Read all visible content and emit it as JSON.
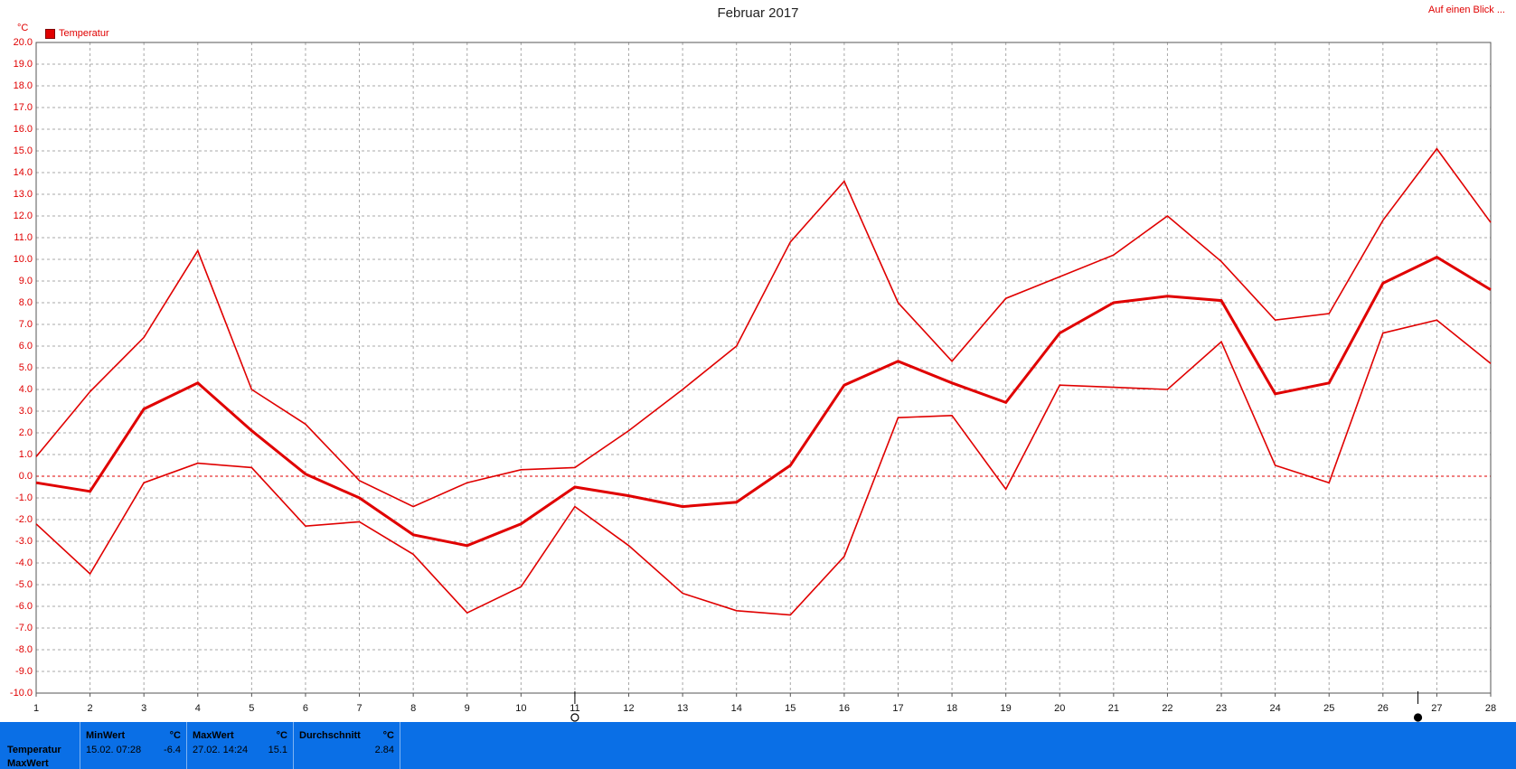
{
  "title": "Februar 2017",
  "link_label": "Auf einen Blick ...",
  "y_unit": "°C",
  "legend": {
    "label": "Temperatur",
    "color": "#e00000"
  },
  "chart_data": {
    "type": "line",
    "title": "Februar 2017",
    "xlabel": "",
    "ylabel": "°C",
    "x": [
      1,
      2,
      3,
      4,
      5,
      6,
      7,
      8,
      9,
      10,
      11,
      12,
      13,
      14,
      15,
      16,
      17,
      18,
      19,
      20,
      21,
      22,
      23,
      24,
      25,
      26,
      27,
      28
    ],
    "xlim": [
      1,
      28
    ],
    "ylim": [
      -10,
      20
    ],
    "y_ticks": [
      "20.0",
      "19.0",
      "18.0",
      "17.0",
      "16.0",
      "15.0",
      "14.0",
      "13.0",
      "12.0",
      "11.0",
      "10.0",
      "9.0",
      "8.0",
      "7.0",
      "6.0",
      "5.0",
      "4.0",
      "3.0",
      "2.0",
      "1.0",
      "0.0",
      "-1.0",
      "-2.0",
      "-3.0",
      "-4.0",
      "-5.0",
      "-6.0",
      "-7.0",
      "-8.0",
      "-9.0",
      "-10.0"
    ],
    "x_ticks": [
      "1",
      "2",
      "3",
      "4",
      "5",
      "6",
      "7",
      "8",
      "9",
      "10",
      "11",
      "12",
      "13",
      "14",
      "15",
      "16",
      "17",
      "18",
      "19",
      "20",
      "21",
      "22",
      "23",
      "24",
      "25",
      "26",
      "27",
      "28"
    ],
    "grid": true,
    "zero_line": true,
    "legend_position": "top-left",
    "series": [
      {
        "name": "Temperatur",
        "role": "max",
        "color": "#e00000",
        "values": [
          0.9,
          3.9,
          6.4,
          10.4,
          4.0,
          2.4,
          -0.2,
          -1.4,
          -0.3,
          0.3,
          0.4,
          2.1,
          4.0,
          6.0,
          10.8,
          13.6,
          8.0,
          5.3,
          8.2,
          9.2,
          10.2,
          12.0,
          9.9,
          7.2,
          7.5,
          11.8,
          15.1,
          11.7
        ]
      },
      {
        "name": "Temperatur",
        "role": "avg",
        "color": "#e00000",
        "values": [
          -0.3,
          -0.7,
          3.1,
          4.3,
          2.1,
          0.1,
          -1.0,
          -2.7,
          -3.2,
          -2.2,
          -0.5,
          -0.9,
          -1.4,
          -1.2,
          0.5,
          4.2,
          5.3,
          4.3,
          3.4,
          6.6,
          8.0,
          8.3,
          8.1,
          3.8,
          4.3,
          8.9,
          10.1,
          8.6
        ]
      },
      {
        "name": "Temperatur",
        "role": "min",
        "color": "#e00000",
        "values": [
          -2.2,
          -4.5,
          -0.3,
          0.6,
          0.4,
          -2.3,
          -2.1,
          -3.6,
          -6.3,
          -5.1,
          -1.4,
          -3.2,
          -5.4,
          -6.2,
          -6.4,
          -3.7,
          2.7,
          2.8,
          -0.6,
          4.2,
          4.1,
          4.0,
          6.2,
          0.5,
          -0.3,
          6.6,
          7.2,
          5.2
        ]
      }
    ],
    "markers": [
      {
        "x": 11,
        "style": "open"
      },
      {
        "x": 26.65,
        "style": "filled"
      }
    ]
  },
  "stats": {
    "row_labels": [
      "Temperatur",
      "MaxWert"
    ],
    "min": {
      "header": "MinWert",
      "unit": "°C",
      "date": "15.02.  07:28",
      "value": "-6.4"
    },
    "max": {
      "header": "MaxWert",
      "unit": "°C",
      "date": "27.02.  14:24",
      "value": "15.1"
    },
    "avg": {
      "header": "Durchschnitt",
      "unit": "°C",
      "value": "2.84"
    }
  }
}
